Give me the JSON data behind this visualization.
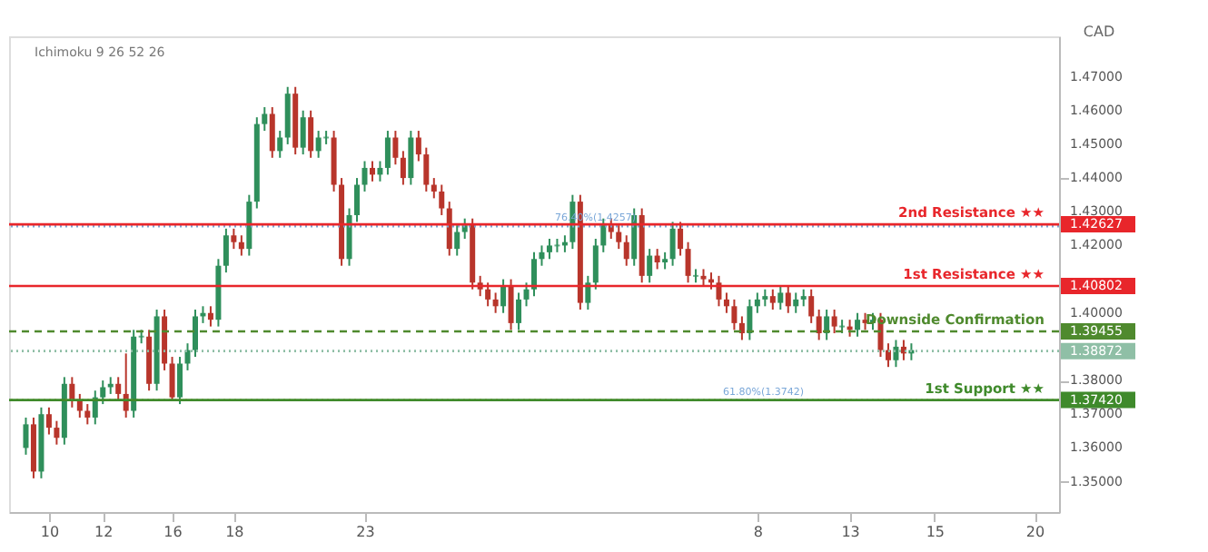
{
  "chart_data": {
    "type": "candlestick",
    "ylabel": "CAD",
    "annotations": [
      "Ichimoku 9 26 52 26",
      {
        "text": "76.40%(1.4257)",
        "y": 1.4257
      },
      {
        "text": "61.80%(1.3742)",
        "y": 1.3742
      }
    ],
    "categories": [
      null,
      null,
      null,
      "10",
      null,
      null,
      null,
      null,
      null,
      null,
      "12",
      null,
      null,
      null,
      null,
      null,
      null,
      null,
      null,
      "16",
      null,
      null,
      null,
      null,
      null,
      null,
      null,
      "18",
      null,
      null,
      null,
      null,
      null,
      null,
      null,
      null,
      null,
      null,
      null,
      null,
      null,
      null,
      null,
      null,
      "23",
      null,
      null,
      null,
      null,
      null,
      null,
      null,
      null,
      null,
      null,
      null,
      null,
      null,
      null,
      null,
      null,
      null,
      null,
      null,
      null,
      null,
      null,
      null,
      null,
      null,
      null,
      null,
      null,
      null,
      null,
      null,
      null,
      null,
      null,
      null,
      null,
      null,
      null,
      null,
      null,
      null,
      null,
      null,
      null,
      null,
      null,
      null,
      null,
      null,
      null,
      "8",
      null,
      null,
      null,
      null,
      null,
      null,
      null,
      null,
      null,
      null,
      null,
      "13",
      null,
      null,
      null,
      null,
      null,
      null,
      null,
      null,
      null,
      null,
      "15",
      null,
      null,
      null,
      null,
      null,
      null,
      null,
      null,
      null,
      null,
      null,
      null,
      "20",
      null
    ],
    "ohlc": [
      [
        1.36,
        1.369,
        1.358,
        1.367
      ],
      [
        1.367,
        1.369,
        1.351,
        1.353
      ],
      [
        1.353,
        1.372,
        1.351,
        1.37
      ],
      [
        1.37,
        1.372,
        1.364,
        1.366
      ],
      [
        1.366,
        1.368,
        1.361,
        1.363
      ],
      [
        1.363,
        1.381,
        1.361,
        1.379
      ],
      [
        1.379,
        1.381,
        1.372,
        1.374
      ],
      [
        1.374,
        1.376,
        1.369,
        1.371
      ],
      [
        1.371,
        1.373,
        1.367,
        1.369
      ],
      [
        1.369,
        1.377,
        1.367,
        1.375
      ],
      [
        1.375,
        1.38,
        1.373,
        1.378
      ],
      [
        1.378,
        1.381,
        1.376,
        1.379
      ],
      [
        1.379,
        1.381,
        1.374,
        1.376
      ],
      [
        1.376,
        1.388,
        1.369,
        1.371
      ],
      [
        1.371,
        1.395,
        1.369,
        1.393
      ],
      [
        1.393,
        1.395,
        1.391,
        1.393
      ],
      [
        1.393,
        1.395,
        1.377,
        1.379
      ],
      [
        1.379,
        1.401,
        1.377,
        1.399
      ],
      [
        1.399,
        1.401,
        1.383,
        1.385
      ],
      [
        1.385,
        1.387,
        1.374,
        1.375
      ],
      [
        1.375,
        1.387,
        1.373,
        1.385
      ],
      [
        1.385,
        1.391,
        1.383,
        1.389
      ],
      [
        1.389,
        1.401,
        1.387,
        1.399
      ],
      [
        1.399,
        1.402,
        1.397,
        1.4
      ],
      [
        1.4,
        1.402,
        1.396,
        1.398
      ],
      [
        1.398,
        1.416,
        1.396,
        1.414
      ],
      [
        1.414,
        1.425,
        1.412,
        1.423
      ],
      [
        1.423,
        1.425,
        1.419,
        1.421
      ],
      [
        1.421,
        1.423,
        1.417,
        1.419
      ],
      [
        1.419,
        1.435,
        1.417,
        1.433
      ],
      [
        1.433,
        1.458,
        1.431,
        1.456
      ],
      [
        1.456,
        1.461,
        1.454,
        1.459
      ],
      [
        1.459,
        1.461,
        1.446,
        1.448
      ],
      [
        1.448,
        1.454,
        1.446,
        1.452
      ],
      [
        1.452,
        1.467,
        1.45,
        1.465
      ],
      [
        1.465,
        1.467,
        1.447,
        1.449
      ],
      [
        1.449,
        1.46,
        1.447,
        1.458
      ],
      [
        1.458,
        1.46,
        1.446,
        1.448
      ],
      [
        1.448,
        1.454,
        1.446,
        1.452
      ],
      [
        1.452,
        1.454,
        1.45,
        1.452
      ],
      [
        1.452,
        1.454,
        1.436,
        1.438
      ],
      [
        1.438,
        1.44,
        1.414,
        1.416
      ],
      [
        1.416,
        1.431,
        1.414,
        1.429
      ],
      [
        1.429,
        1.44,
        1.427,
        1.438
      ],
      [
        1.438,
        1.445,
        1.436,
        1.443
      ],
      [
        1.443,
        1.445,
        1.439,
        1.441
      ],
      [
        1.441,
        1.445,
        1.439,
        1.443
      ],
      [
        1.443,
        1.454,
        1.441,
        1.452
      ],
      [
        1.452,
        1.454,
        1.444,
        1.446
      ],
      [
        1.446,
        1.448,
        1.438,
        1.44
      ],
      [
        1.44,
        1.454,
        1.438,
        1.452
      ],
      [
        1.452,
        1.454,
        1.445,
        1.447
      ],
      [
        1.447,
        1.449,
        1.436,
        1.438
      ],
      [
        1.438,
        1.44,
        1.434,
        1.436
      ],
      [
        1.436,
        1.438,
        1.429,
        1.431
      ],
      [
        1.431,
        1.433,
        1.417,
        1.419
      ],
      [
        1.419,
        1.426,
        1.417,
        1.424
      ],
      [
        1.424,
        1.428,
        1.422,
        1.426
      ],
      [
        1.426,
        1.428,
        1.407,
        1.409
      ],
      [
        1.409,
        1.411,
        1.405,
        1.407
      ],
      [
        1.407,
        1.409,
        1.402,
        1.404
      ],
      [
        1.404,
        1.406,
        1.4,
        1.402
      ],
      [
        1.402,
        1.41,
        1.4,
        1.408
      ],
      [
        1.408,
        1.41,
        1.395,
        1.397
      ],
      [
        1.397,
        1.406,
        1.395,
        1.404
      ],
      [
        1.404,
        1.409,
        1.402,
        1.407
      ],
      [
        1.407,
        1.418,
        1.405,
        1.416
      ],
      [
        1.416,
        1.42,
        1.414,
        1.418
      ],
      [
        1.418,
        1.422,
        1.416,
        1.42
      ],
      [
        1.42,
        1.422,
        1.418,
        1.42
      ],
      [
        1.42,
        1.423,
        1.418,
        1.421
      ],
      [
        1.421,
        1.435,
        1.419,
        1.433
      ],
      [
        1.433,
        1.435,
        1.401,
        1.403
      ],
      [
        1.403,
        1.411,
        1.401,
        1.409
      ],
      [
        1.409,
        1.422,
        1.407,
        1.42
      ],
      [
        1.42,
        1.428,
        1.418,
        1.426
      ],
      [
        1.426,
        1.428,
        1.422,
        1.424
      ],
      [
        1.424,
        1.426,
        1.419,
        1.421
      ],
      [
        1.421,
        1.423,
        1.414,
        1.416
      ],
      [
        1.416,
        1.431,
        1.414,
        1.429
      ],
      [
        1.429,
        1.431,
        1.409,
        1.411
      ],
      [
        1.411,
        1.419,
        1.409,
        1.417
      ],
      [
        1.417,
        1.419,
        1.413,
        1.415
      ],
      [
        1.415,
        1.418,
        1.413,
        1.416
      ],
      [
        1.416,
        1.427,
        1.414,
        1.425
      ],
      [
        1.425,
        1.427,
        1.417,
        1.419
      ],
      [
        1.419,
        1.421,
        1.409,
        1.411
      ],
      [
        1.411,
        1.413,
        1.409,
        1.411
      ],
      [
        1.411,
        1.413,
        1.408,
        1.41
      ],
      [
        1.41,
        1.412,
        1.407,
        1.409
      ],
      [
        1.409,
        1.411,
        1.402,
        1.404
      ],
      [
        1.404,
        1.406,
        1.4,
        1.402
      ],
      [
        1.402,
        1.404,
        1.395,
        1.397
      ],
      [
        1.397,
        1.399,
        1.392,
        1.394
      ],
      [
        1.394,
        1.404,
        1.392,
        1.402
      ],
      [
        1.402,
        1.406,
        1.4,
        1.404
      ],
      [
        1.404,
        1.407,
        1.402,
        1.405
      ],
      [
        1.405,
        1.407,
        1.401,
        1.403
      ],
      [
        1.403,
        1.408,
        1.401,
        1.406
      ],
      [
        1.406,
        1.408,
        1.4,
        1.402
      ],
      [
        1.402,
        1.406,
        1.4,
        1.404
      ],
      [
        1.404,
        1.407,
        1.402,
        1.405
      ],
      [
        1.405,
        1.407,
        1.397,
        1.399
      ],
      [
        1.399,
        1.401,
        1.392,
        1.394
      ],
      [
        1.394,
        1.401,
        1.392,
        1.399
      ],
      [
        1.399,
        1.401,
        1.394,
        1.396
      ],
      [
        1.396,
        1.398,
        1.394,
        1.396
      ],
      [
        1.396,
        1.398,
        1.393,
        1.395
      ],
      [
        1.395,
        1.4,
        1.393,
        1.398
      ],
      [
        1.398,
        1.4,
        1.395,
        1.397
      ],
      [
        1.397,
        1.4,
        1.395,
        1.398
      ],
      [
        1.398,
        1.4,
        1.387,
        1.389
      ],
      [
        1.389,
        1.391,
        1.384,
        1.386
      ],
      [
        1.386,
        1.392,
        1.384,
        1.39
      ],
      [
        1.39,
        1.392,
        1.386,
        1.388
      ],
      [
        1.388,
        1.391,
        1.386,
        1.389
      ],
      null,
      null,
      null,
      null,
      null,
      null,
      null,
      null,
      null,
      null,
      null,
      null,
      null,
      null,
      null,
      null,
      null
    ],
    "ylim": [
      1.341,
      1.482
    ],
    "yticks": [
      {
        "value": 1.35,
        "label": "1.35000"
      },
      {
        "value": 1.36,
        "label": "1.36000"
      },
      {
        "value": 1.37,
        "label": "1.37000"
      },
      {
        "value": 1.3742,
        "label": "1.37420"
      },
      {
        "value": 1.38,
        "label": "1.38000"
      },
      {
        "value": 1.38872,
        "label": "1.38872"
      },
      {
        "value": 1.39455,
        "label": "1.39455"
      },
      {
        "value": 1.4,
        "label": "1.40000"
      },
      {
        "value": 1.40802,
        "label": "1.40802"
      },
      {
        "value": 1.42,
        "label": "1.42000"
      },
      {
        "value": 1.42627,
        "label": "1.42627"
      },
      {
        "value": 1.43,
        "label": "1.43000"
      },
      {
        "value": 1.44,
        "label": "1.44000"
      },
      {
        "value": 1.45,
        "label": "1.45000"
      },
      {
        "value": 1.46,
        "label": "1.46000"
      },
      {
        "value": 1.47,
        "label": "1.47000"
      }
    ],
    "ref_lines": [
      {
        "axis": "y",
        "value": 1.4257,
        "color": "#7aa7d8",
        "line_style": "dotted"
      },
      {
        "axis": "y",
        "value": 1.42627,
        "label": "2nd Resistance ★★",
        "color": "#e8262b",
        "line_style": "solid"
      },
      {
        "axis": "y",
        "value": 1.40802,
        "label": "1st Resistance ★★",
        "color": "#e8262b",
        "line_style": "solid"
      },
      {
        "axis": "y",
        "value": 1.39455,
        "label": "Downside Confirmation",
        "color": "#4f8a2e",
        "line_style": "dashed"
      },
      {
        "axis": "y",
        "value": 1.38872,
        "label": null,
        "color": "#8fbfa6",
        "line_style": "dotted"
      },
      {
        "axis": "y",
        "value": 1.3742,
        "color": "#d9c27a",
        "line_style": "dotted"
      },
      {
        "axis": "y",
        "value": 1.3742,
        "label": "1st Support ★★",
        "color": "#3f8a2b",
        "line_style": "solid"
      }
    ]
  }
}
